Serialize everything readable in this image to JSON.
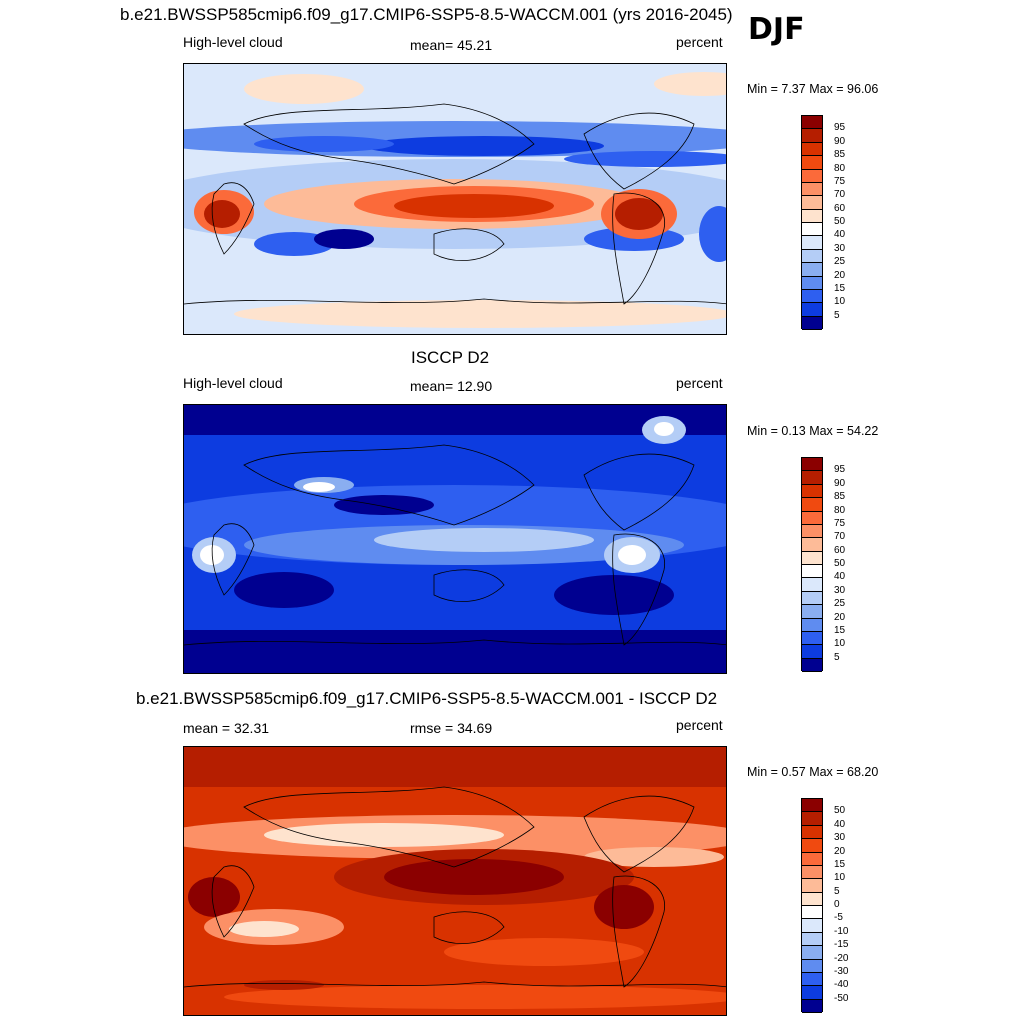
{
  "season": "DJF",
  "panels": [
    {
      "title": "b.e21.BWSSP585cmip6.f09_g17.CMIP6-SSP5-8.5-WACCM.001 (yrs 2016-2045)",
      "left_label": "High-level cloud",
      "center_label": "mean=  45.21",
      "right_label": "percent",
      "min_label": "Min =",
      "min_value": "7.37",
      "max_label": "Max =",
      "max_value": "96.06",
      "stats": "Min =   7.37 Max =  96.06",
      "colorbar_levels": [
        "95",
        "90",
        "85",
        "80",
        "75",
        "70",
        "60",
        "50",
        "40",
        "30",
        "25",
        "20",
        "15",
        "10",
        "5"
      ],
      "colorbar_colors": [
        "#8b0000",
        "#b51e00",
        "#d83200",
        "#f04a10",
        "#fb6a3a",
        "#fc9066",
        "#fdbb98",
        "#fee3ce",
        "#ffffff",
        "#dbe8fb",
        "#b4cdf6",
        "#8aaef0",
        "#5f8cf0",
        "#2e5ff0",
        "#0d3ce0",
        "#000090"
      ],
      "field_mean": 45.21,
      "field_min": 7.37,
      "field_max": 96.06
    },
    {
      "title": "ISCCP D2",
      "left_label": "High-level cloud",
      "center_label": "mean=  12.90",
      "right_label": "percent",
      "min_label": "Min =",
      "min_value": "0.13",
      "max_label": "Max =",
      "max_value": "54.22",
      "stats": "Min =   0.13 Max =  54.22",
      "colorbar_levels": [
        "95",
        "90",
        "85",
        "80",
        "75",
        "70",
        "60",
        "50",
        "40",
        "30",
        "25",
        "20",
        "15",
        "10",
        "5"
      ],
      "colorbar_colors": [
        "#8b0000",
        "#b51e00",
        "#d83200",
        "#f04a10",
        "#fb6a3a",
        "#fc9066",
        "#fdbb98",
        "#fee3ce",
        "#ffffff",
        "#dbe8fb",
        "#b4cdf6",
        "#8aaef0",
        "#5f8cf0",
        "#2e5ff0",
        "#0d3ce0",
        "#000090"
      ],
      "field_mean": 12.9,
      "field_min": 0.13,
      "field_max": 54.22
    },
    {
      "title": "b.e21.BWSSP585cmip6.f09_g17.CMIP6-SSP5-8.5-WACCM.001 - ISCCP D2",
      "left_label": "mean =  32.31",
      "center_label": "rmse =  34.69",
      "right_label": "percent",
      "min_label": "Min =",
      "min_value": "0.57",
      "max_label": "Max =",
      "max_value": "68.20",
      "stats": "Min =   0.57 Max =  68.20",
      "colorbar_levels": [
        "50",
        "40",
        "30",
        "20",
        "15",
        "10",
        "5",
        "0",
        "-5",
        "-10",
        "-15",
        "-20",
        "-30",
        "-40",
        "-50"
      ],
      "colorbar_colors": [
        "#8b0000",
        "#b51e00",
        "#d83200",
        "#f04a10",
        "#fb6a3a",
        "#fc9066",
        "#fdbb98",
        "#fee3ce",
        "#ffffff",
        "#dbe8fb",
        "#b4cdf6",
        "#8aaef0",
        "#5f8cf0",
        "#2e5ff0",
        "#0d3ce0",
        "#000090"
      ],
      "field_mean": 32.31,
      "field_rmse": 34.69,
      "field_min": 0.57,
      "field_max": 68.2
    }
  ]
}
